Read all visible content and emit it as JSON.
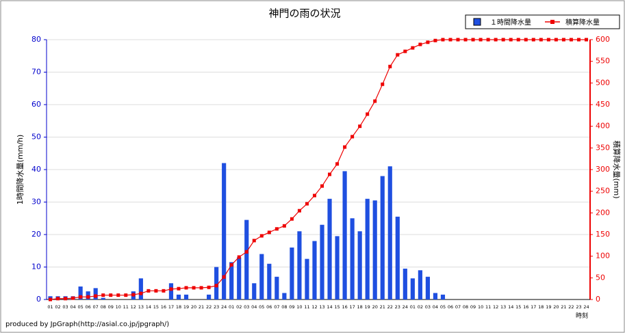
{
  "chart_data": {
    "type": "bar_line",
    "title": "神門の雨の状況",
    "y_label": "1時間降水量(mm/h)",
    "y2_label": "積算降水量(mm)",
    "x_label": "時刻",
    "footer": "produced by JpGraph(http://asial.co.jp/jpgraph/)",
    "legend_position": "top-right",
    "categories": [
      "01",
      "02",
      "03",
      "04",
      "05",
      "06",
      "07",
      "08",
      "09",
      "10",
      "11",
      "12",
      "13",
      "14",
      "15",
      "16",
      "17",
      "18",
      "19",
      "20",
      "21",
      "22",
      "23",
      "24",
      "01",
      "02",
      "03",
      "04",
      "05",
      "06",
      "07",
      "08",
      "09",
      "10",
      "11",
      "12",
      "13",
      "14",
      "15",
      "16",
      "17",
      "18",
      "19",
      "20",
      "21",
      "22",
      "23",
      "24",
      "01",
      "02",
      "03",
      "04",
      "05",
      "06",
      "07",
      "08",
      "09",
      "10",
      "11",
      "12",
      "13",
      "14",
      "15",
      "16",
      "17",
      "18",
      "19",
      "20",
      "21",
      "22",
      "23",
      "24"
    ],
    "series": [
      {
        "name": "１時間降水量",
        "type": "bar",
        "color": "#1f4fe0",
        "values": [
          1,
          1,
          1,
          1,
          4,
          2.5,
          3.5,
          0.5,
          0,
          0,
          0,
          2.5,
          6.5,
          0,
          0,
          0,
          5,
          1.5,
          1.5,
          0,
          0,
          1.5,
          10,
          42,
          11.5,
          13,
          24.5,
          5,
          14,
          11,
          7,
          2,
          16,
          21,
          12.5,
          18,
          23,
          31,
          19.5,
          39.5,
          25,
          21,
          31,
          30.5,
          38,
          41,
          25.5,
          9.5,
          6.5,
          9,
          7,
          2,
          1.5,
          0,
          0,
          0,
          0,
          0,
          0,
          0,
          0,
          0,
          0,
          0,
          0,
          0,
          0,
          0,
          0,
          0,
          0,
          0
        ]
      },
      {
        "name": "積算降水量",
        "type": "line",
        "axis": "y2",
        "color": "#ee0000",
        "values": [
          0,
          2,
          2,
          3,
          6,
          6,
          8,
          10,
          10,
          10,
          10,
          11,
          14,
          20,
          20,
          20,
          24,
          25,
          27,
          27,
          27,
          28,
          32,
          52,
          80,
          98,
          110,
          136,
          147,
          155,
          163,
          170,
          186,
          205,
          221,
          240,
          262,
          289,
          313,
          352,
          376,
          400,
          428,
          458,
          497,
          538,
          565,
          573,
          581,
          589,
          594,
          598,
          600,
          600,
          600,
          600,
          600,
          600,
          600,
          600,
          600,
          600,
          600,
          600,
          600,
          600,
          600,
          600,
          600,
          600,
          600,
          600
        ]
      }
    ],
    "ylim": [
      0,
      80
    ],
    "yticks": [
      0,
      10,
      20,
      30,
      40,
      50,
      60,
      70,
      80
    ],
    "y2lim": [
      0,
      600
    ],
    "y2ticks": [
      0,
      50,
      100,
      150,
      200,
      250,
      300,
      350,
      400,
      450,
      500,
      550,
      600
    ],
    "grid": true
  }
}
